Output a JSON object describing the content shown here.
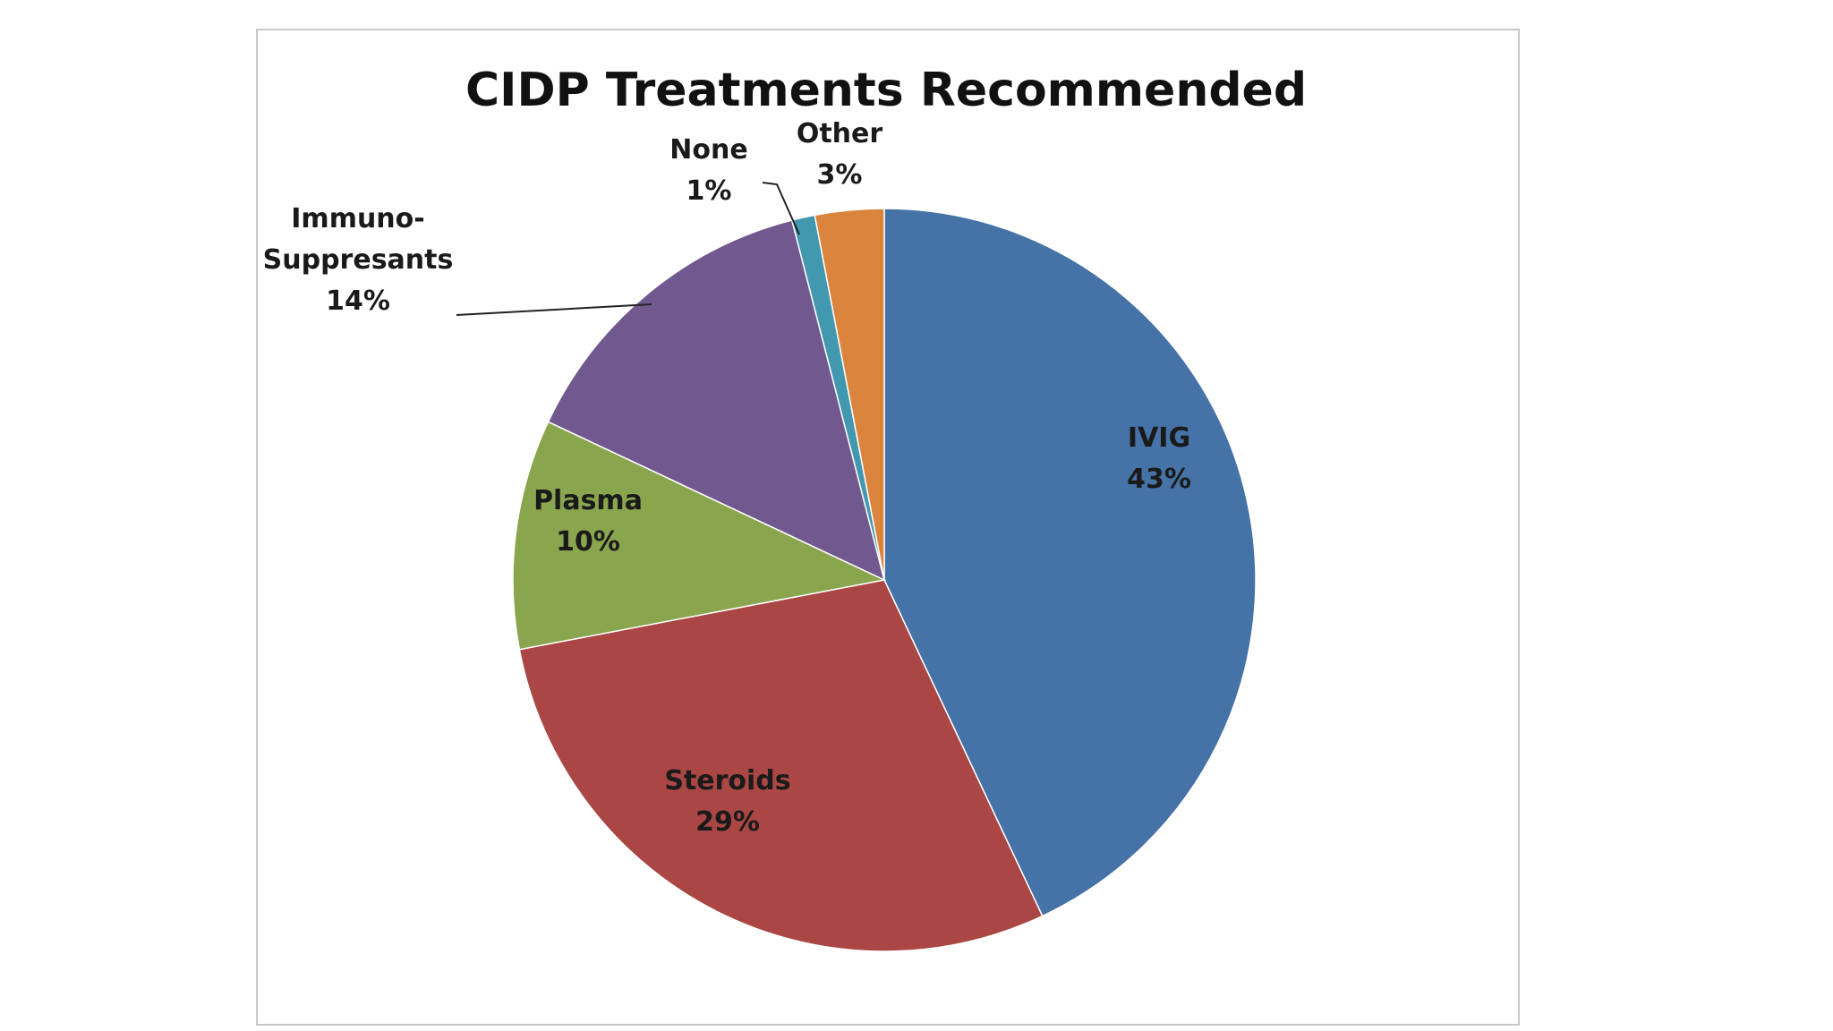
{
  "chart_data": {
    "type": "pie",
    "title": "CIDP Treatments Recommended",
    "slices": [
      {
        "label": "IVIG",
        "value": 43,
        "display": "43%",
        "color": "#4572A7"
      },
      {
        "label": "Steroids",
        "value": 29,
        "display": "29%",
        "color": "#AA4643"
      },
      {
        "label": "Plasma",
        "value": 10,
        "display": "10%",
        "color": "#89A54E"
      },
      {
        "label": "Immuno-Suppresants",
        "label_lines": [
          "Immuno-",
          "Suppresants"
        ],
        "value": 14,
        "display": "14%",
        "color": "#71588F"
      },
      {
        "label": "None",
        "value": 1,
        "display": "1%",
        "color": "#4198AF"
      },
      {
        "label": "Other",
        "value": 3,
        "display": "3%",
        "color": "#DB843D"
      }
    ]
  }
}
